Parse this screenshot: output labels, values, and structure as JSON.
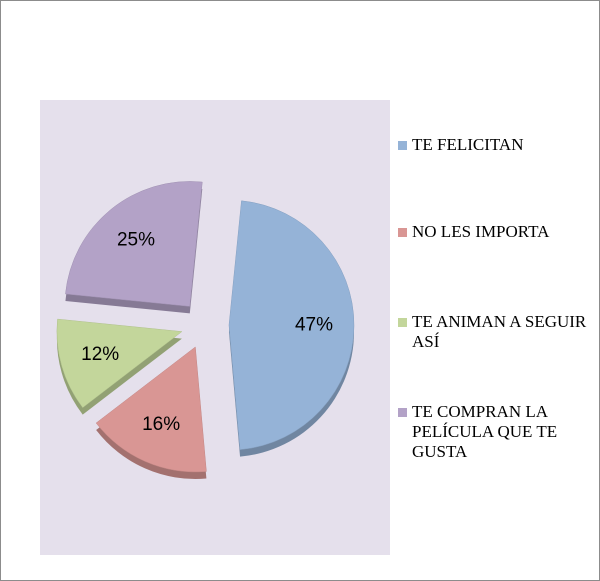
{
  "chart_data": {
    "type": "pie",
    "categories": [
      "TE FELICITAN",
      "NO LES IMPORTA",
      "TE ANIMAN A SEGUIR ASÍ",
      "TE COMPRAN LA PELÍCULA QUE TE GUSTA"
    ],
    "values": [
      47,
      16,
      12,
      25
    ],
    "value_labels": [
      "47%",
      "16%",
      "12%",
      "25%"
    ],
    "colors": [
      "#95b3d7",
      "#d99694",
      "#c3d69b",
      "#b3a2c7"
    ],
    "legend": "right"
  }
}
